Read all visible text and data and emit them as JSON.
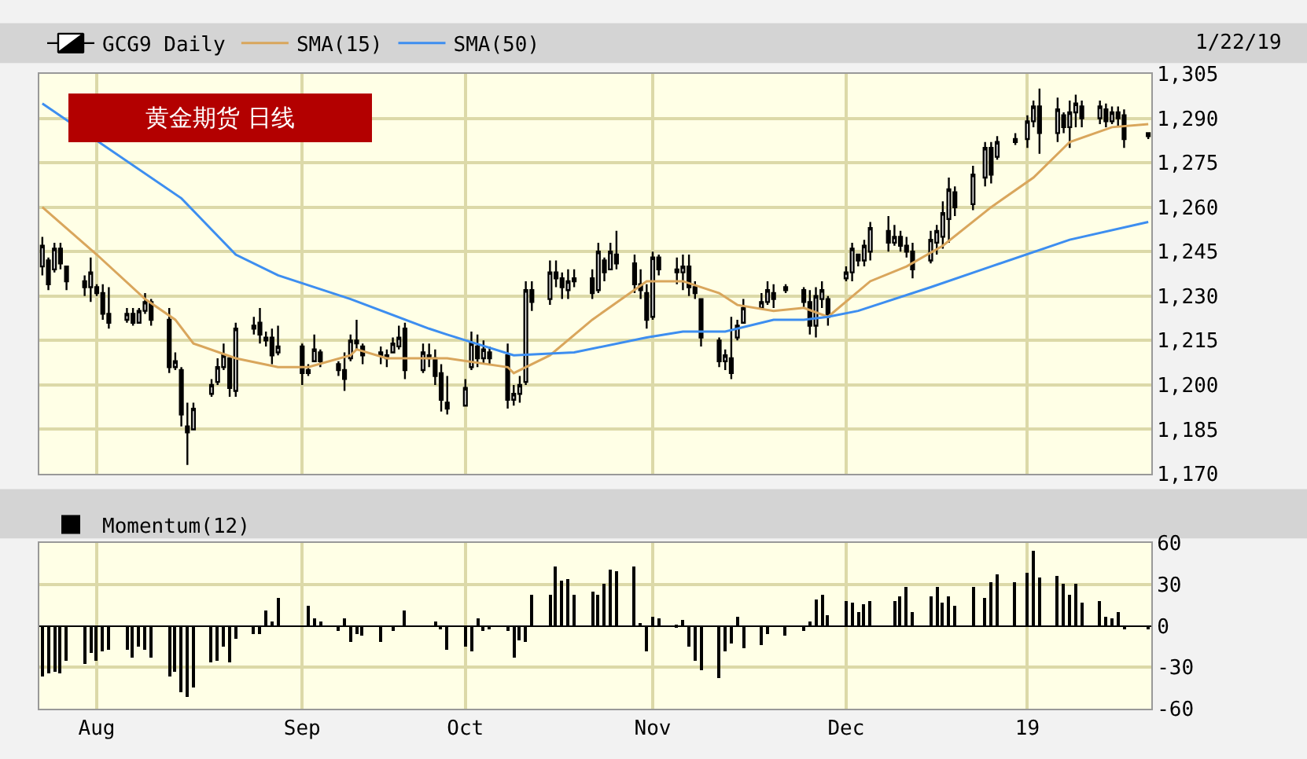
{
  "chart_data": [
    {
      "type": "candlestick",
      "title": "黄金期货 日线",
      "annotations": [
        "1/22/19"
      ],
      "legend": "top left",
      "grid": true,
      "tick_labels": "y",
      "x": [
        "2018-07-23",
        "2018-07-24",
        "2018-07-25",
        "2018-07-26",
        "2018-07-27",
        "2018-07-30",
        "2018-07-31",
        "2018-08-01",
        "2018-08-02",
        "2018-08-03",
        "2018-08-06",
        "2018-08-07",
        "2018-08-08",
        "2018-08-09",
        "2018-08-10",
        "2018-08-13",
        "2018-08-14",
        "2018-08-15",
        "2018-08-16",
        "2018-08-17",
        "2018-08-20",
        "2018-08-21",
        "2018-08-22",
        "2018-08-23",
        "2018-08-24",
        "2018-08-27",
        "2018-08-28",
        "2018-08-29",
        "2018-08-30",
        "2018-08-31",
        "2018-09-04",
        "2018-09-05",
        "2018-09-06",
        "2018-09-07",
        "2018-09-10",
        "2018-09-11",
        "2018-09-12",
        "2018-09-13",
        "2018-09-14",
        "2018-09-17",
        "2018-09-18",
        "2018-09-19",
        "2018-09-20",
        "2018-09-21",
        "2018-09-24",
        "2018-09-25",
        "2018-09-26",
        "2018-09-27",
        "2018-09-28",
        "2018-10-01",
        "2018-10-02",
        "2018-10-03",
        "2018-10-04",
        "2018-10-05",
        "2018-10-08",
        "2018-10-09",
        "2018-10-10",
        "2018-10-11",
        "2018-10-12",
        "2018-10-15",
        "2018-10-16",
        "2018-10-17",
        "2018-10-18",
        "2018-10-19",
        "2018-10-22",
        "2018-10-23",
        "2018-10-24",
        "2018-10-25",
        "2018-10-26",
        "2018-10-29",
        "2018-10-30",
        "2018-10-31",
        "2018-11-01",
        "2018-11-02",
        "2018-11-05",
        "2018-11-06",
        "2018-11-07",
        "2018-11-08",
        "2018-11-09",
        "2018-11-12",
        "2018-11-13",
        "2018-11-14",
        "2018-11-15",
        "2018-11-16",
        "2018-11-19",
        "2018-11-20",
        "2018-11-21",
        "2018-11-23",
        "2018-11-26",
        "2018-11-27",
        "2018-11-28",
        "2018-11-29",
        "2018-11-30",
        "2018-12-03",
        "2018-12-04",
        "2018-12-05",
        "2018-12-06",
        "2018-12-07",
        "2018-12-10",
        "2018-12-11",
        "2018-12-12",
        "2018-12-13",
        "2018-12-14",
        "2018-12-17",
        "2018-12-18",
        "2018-12-19",
        "2018-12-20",
        "2018-12-21",
        "2018-12-24",
        "2018-12-26",
        "2018-12-27",
        "2018-12-28",
        "2018-12-31",
        "2019-01-02",
        "2019-01-03",
        "2019-01-04",
        "2019-01-07",
        "2019-01-08",
        "2019-01-09",
        "2019-01-10",
        "2019-01-11",
        "2019-01-14",
        "2019-01-15",
        "2019-01-16",
        "2019-01-17",
        "2019-01-18",
        "2019-01-22"
      ],
      "xlim": [
        "2018-07-22T12:00",
        "2019-01-22T12:00"
      ],
      "xticks": [
        {
          "value": "2018-08-01",
          "label": null
        },
        {
          "value": "2018-09-04",
          "label": null
        },
        {
          "value": "2018-10-01",
          "label": null
        },
        {
          "value": "2018-11-01",
          "label": null
        },
        {
          "value": "2018-12-03",
          "label": null
        },
        {
          "value": "2019-01-02",
          "label": null
        }
      ],
      "ylim": [
        1170,
        1305
      ],
      "yticks": [
        {
          "value": 1170,
          "label": "1,170"
        },
        {
          "value": 1185,
          "label": "1,185"
        },
        {
          "value": 1200,
          "label": "1,200"
        },
        {
          "value": 1215,
          "label": "1,215"
        },
        {
          "value": 1230,
          "label": "1,230"
        },
        {
          "value": 1245,
          "label": "1,245"
        },
        {
          "value": 1260,
          "label": "1,260"
        },
        {
          "value": 1275,
          "label": "1,275"
        },
        {
          "value": 1290,
          "label": "1,290"
        },
        {
          "value": 1305,
          "label": "1,305"
        }
      ],
      "series": [
        {
          "name": "GCG9 Daily",
          "type": "candlestick",
          "color": "#000000",
          "ohlc": [
            [
              1240,
              1250,
              1237,
              1247
            ],
            [
              1242,
              1243,
              1232,
              1234
            ],
            [
              1239,
              1248,
              1238,
              1246
            ],
            [
              1246,
              1248,
              1239,
              1241
            ],
            [
              1240,
              1240,
              1232,
              1235
            ],
            [
              1235,
              1237,
              1230,
              1233
            ],
            [
              1233,
              1243,
              1228,
              1238
            ],
            [
              1233,
              1234,
              1230,
              1231
            ],
            [
              1231,
              1234,
              1222,
              1224
            ],
            [
              1224,
              1233,
              1219,
              1221
            ],
            [
              1222,
              1226,
              1221,
              1224
            ],
            [
              1224,
              1226,
              1220,
              1221
            ],
            [
              1221,
              1226,
              1221,
              1225
            ],
            [
              1225,
              1231,
              1224,
              1228
            ],
            [
              1228,
              1229,
              1220,
              1222
            ],
            [
              1222,
              1226,
              1204,
              1206
            ],
            [
              1206,
              1211,
              1205,
              1208
            ],
            [
              1205,
              1206,
              1186,
              1190
            ],
            [
              1186,
              1194,
              1173,
              1184
            ],
            [
              1185,
              1194,
              1185,
              1192
            ],
            [
              1197,
              1202,
              1196,
              1200
            ],
            [
              1201,
              1209,
              1200,
              1206
            ],
            [
              1206,
              1214,
              1205,
              1210
            ],
            [
              1209,
              1209,
              1196,
              1199
            ],
            [
              1198,
              1221,
              1196,
              1219
            ],
            [
              1219,
              1223,
              1217,
              1220
            ],
            [
              1221,
              1226,
              1214,
              1217
            ],
            [
              1216,
              1218,
              1213,
              1215
            ],
            [
              1216,
              1219,
              1207,
              1210
            ],
            [
              1211,
              1220,
              1210,
              1213
            ],
            [
              1213,
              1214,
              1200,
              1204
            ],
            [
              1204,
              1207,
              1203,
              1205
            ],
            [
              1208,
              1217,
              1208,
              1212
            ],
            [
              1211,
              1212,
              1206,
              1208
            ],
            [
              1207,
              1208,
              1203,
              1205
            ],
            [
              1205,
              1211,
              1198,
              1202
            ],
            [
              1209,
              1217,
              1208,
              1215
            ],
            [
              1215,
              1222,
              1212,
              1214
            ],
            [
              1213,
              1214,
              1207,
              1210
            ],
            [
              1210,
              1213,
              1207,
              1211
            ],
            [
              1209,
              1212,
              1206,
              1210
            ],
            [
              1211,
              1216,
              1211,
              1214
            ],
            [
              1213,
              1220,
              1212,
              1216
            ],
            [
              1219,
              1221,
              1202,
              1205
            ],
            [
              1205,
              1214,
              1204,
              1211
            ],
            [
              1210,
              1214,
              1206,
              1209
            ],
            [
              1209,
              1212,
              1200,
              1203
            ],
            [
              1204,
              1207,
              1191,
              1195
            ],
            [
              1194,
              1203,
              1190,
              1192
            ],
            [
              1193,
              1202,
              1193,
              1199
            ],
            [
              1206,
              1218,
              1205,
              1214
            ],
            [
              1213,
              1217,
              1206,
              1209
            ],
            [
              1209,
              1215,
              1207,
              1212
            ],
            [
              1211,
              1213,
              1207,
              1209
            ],
            [
              1210,
              1214,
              1192,
              1195
            ],
            [
              1195,
              1200,
              1193,
              1197
            ],
            [
              1197,
              1203,
              1194,
              1200
            ],
            [
              1201,
              1235,
              1200,
              1232
            ],
            [
              1232,
              1235,
              1225,
              1228
            ],
            [
              1229,
              1242,
              1227,
              1238
            ],
            [
              1238,
              1242,
              1233,
              1236
            ],
            [
              1236,
              1238,
              1229,
              1233
            ],
            [
              1232,
              1239,
              1229,
              1235
            ],
            [
              1235,
              1239,
              1233,
              1236
            ],
            [
              1236,
              1239,
              1229,
              1231
            ],
            [
              1232,
              1248,
              1231,
              1245
            ],
            [
              1242,
              1243,
              1235,
              1238
            ],
            [
              1239,
              1248,
              1239,
              1245
            ],
            [
              1244,
              1252,
              1239,
              1241
            ],
            [
              1241,
              1244,
              1231,
              1234
            ],
            [
              1234,
              1239,
              1229,
              1232
            ],
            [
              1231,
              1234,
              1219,
              1222
            ],
            [
              1223,
              1245,
              1222,
              1243
            ],
            [
              1243,
              1244,
              1237,
              1239
            ],
            [
              1239,
              1243,
              1234,
              1238
            ],
            [
              1238,
              1244,
              1232,
              1240
            ],
            [
              1240,
              1244,
              1230,
              1233
            ],
            [
              1233,
              1235,
              1229,
              1231
            ],
            [
              1229,
              1229,
              1213,
              1216
            ],
            [
              1215,
              1216,
              1206,
              1208
            ],
            [
              1208,
              1212,
              1205,
              1210
            ],
            [
              1209,
              1223,
              1202,
              1204
            ],
            [
              1216,
              1222,
              1215,
              1220
            ],
            [
              1221,
              1229,
              1221,
              1226
            ],
            [
              1226,
              1231,
              1226,
              1228
            ],
            [
              1228,
              1235,
              1227,
              1232
            ],
            [
              1231,
              1234,
              1226,
              1229
            ],
            [
              1232,
              1234,
              1231,
              1233
            ],
            [
              1232,
              1233,
              1226,
              1228
            ],
            [
              1228,
              1232,
              1217,
              1220
            ],
            [
              1220,
              1233,
              1216,
              1230
            ],
            [
              1229,
              1235,
              1226,
              1232
            ],
            [
              1229,
              1230,
              1220,
              1223
            ],
            [
              1236,
              1240,
              1235,
              1238
            ],
            [
              1238,
              1248,
              1235,
              1246
            ],
            [
              1244,
              1244,
              1240,
              1242
            ],
            [
              1242,
              1249,
              1240,
              1247
            ],
            [
              1245,
              1255,
              1242,
              1253
            ],
            [
              1252,
              1257,
              1245,
              1248
            ],
            [
              1248,
              1254,
              1247,
              1250
            ],
            [
              1250,
              1252,
              1245,
              1247
            ],
            [
              1247,
              1250,
              1243,
              1245
            ],
            [
              1245,
              1248,
              1236,
              1239
            ],
            [
              1242,
              1252,
              1241,
              1249
            ],
            [
              1248,
              1254,
              1244,
              1252
            ],
            [
              1250,
              1262,
              1246,
              1258
            ],
            [
              1256,
              1270,
              1248,
              1266
            ],
            [
              1265,
              1267,
              1257,
              1260
            ],
            [
              1261,
              1274,
              1259,
              1271
            ],
            [
              1270,
              1282,
              1267,
              1280
            ],
            [
              1280,
              1282,
              1268,
              1271
            ],
            [
              1277,
              1284,
              1276,
              1282
            ],
            [
              1282,
              1285,
              1281,
              1283
            ],
            [
              1283,
              1291,
              1280,
              1289
            ],
            [
              1289,
              1296,
              1287,
              1294
            ],
            [
              1294,
              1300,
              1278,
              1285
            ],
            [
              1285,
              1297,
              1282,
              1293
            ],
            [
              1291,
              1292,
              1285,
              1287
            ],
            [
              1287,
              1296,
              1280,
              1292
            ],
            [
              1292,
              1298,
              1287,
              1295
            ],
            [
              1294,
              1296,
              1287,
              1290
            ],
            [
              1290,
              1296,
              1288,
              1294
            ],
            [
              1293,
              1295,
              1287,
              1289
            ],
            [
              1289,
              1294,
              1288,
              1292
            ],
            [
              1292,
              1294,
              1287,
              1290
            ],
            [
              1291,
              1293,
              1280,
              1283
            ],
            [
              1285,
              1285,
              1283,
              1284
            ]
          ]
        },
        {
          "name": "SMA(15)",
          "type": "line",
          "color": "#d9a65c",
          "x": [
            "2018-07-23",
            "2018-08-01",
            "2018-08-09",
            "2018-08-14",
            "2018-08-17",
            "2018-08-24",
            "2018-08-31",
            "2018-09-05",
            "2018-09-12",
            "2018-09-13",
            "2018-09-18",
            "2018-09-25",
            "2018-09-28",
            "2018-10-08",
            "2018-10-09",
            "2018-10-15",
            "2018-10-22",
            "2018-10-31",
            "2018-11-06",
            "2018-11-12",
            "2018-11-15",
            "2018-11-21",
            "2018-11-26",
            "2018-11-30",
            "2018-12-07",
            "2018-12-13",
            "2018-12-19",
            "2018-12-27",
            "2019-01-03",
            "2019-01-09",
            "2019-01-16",
            "2019-01-22"
          ],
          "values": [
            1260,
            1244,
            1229,
            1222,
            1214,
            1209,
            1206,
            1206,
            1210,
            1212,
            1209,
            1209,
            1209,
            1206,
            1204,
            1210,
            1222,
            1235,
            1235,
            1231,
            1227,
            1225,
            1226,
            1223,
            1235,
            1240,
            1247,
            1260,
            1270,
            1282,
            1287,
            1288
          ]
        },
        {
          "name": "SMA(50)",
          "type": "line",
          "color": "#3d8ef0",
          "x": [
            "2018-07-23",
            "2018-08-15",
            "2018-08-24",
            "2018-08-31",
            "2018-09-12",
            "2018-09-25",
            "2018-09-28",
            "2018-10-09",
            "2018-10-19",
            "2018-10-31",
            "2018-11-06",
            "2018-11-13",
            "2018-11-21",
            "2018-11-26",
            "2018-11-30",
            "2018-12-05",
            "2018-12-17",
            "2018-12-27",
            "2019-01-09",
            "2019-01-22"
          ],
          "values": [
            1295,
            1263,
            1244,
            1237,
            1229,
            1219,
            1217,
            1210,
            1211,
            1216,
            1218,
            1218,
            1222,
            1222,
            1223,
            1225,
            1233,
            1240,
            1249,
            1255
          ]
        }
      ]
    },
    {
      "type": "bar",
      "legend": "top left",
      "grid": true,
      "x": [
        "2018-07-23",
        "2018-07-24",
        "2018-07-25",
        "2018-07-26",
        "2018-07-27",
        "2018-07-30",
        "2018-07-31",
        "2018-08-01",
        "2018-08-02",
        "2018-08-03",
        "2018-08-06",
        "2018-08-07",
        "2018-08-08",
        "2018-08-09",
        "2018-08-10",
        "2018-08-13",
        "2018-08-14",
        "2018-08-15",
        "2018-08-16",
        "2018-08-17",
        "2018-08-20",
        "2018-08-21",
        "2018-08-22",
        "2018-08-23",
        "2018-08-24",
        "2018-08-27",
        "2018-08-28",
        "2018-08-29",
        "2018-08-30",
        "2018-08-31",
        "2018-09-04",
        "2018-09-05",
        "2018-09-06",
        "2018-09-07",
        "2018-09-10",
        "2018-09-11",
        "2018-09-12",
        "2018-09-13",
        "2018-09-14",
        "2018-09-17",
        "2018-09-18",
        "2018-09-19",
        "2018-09-20",
        "2018-09-21",
        "2018-09-24",
        "2018-09-25",
        "2018-09-26",
        "2018-09-27",
        "2018-09-28",
        "2018-10-01",
        "2018-10-02",
        "2018-10-03",
        "2018-10-04",
        "2018-10-05",
        "2018-10-08",
        "2018-10-09",
        "2018-10-10",
        "2018-10-11",
        "2018-10-12",
        "2018-10-15",
        "2018-10-16",
        "2018-10-17",
        "2018-10-18",
        "2018-10-19",
        "2018-10-22",
        "2018-10-23",
        "2018-10-24",
        "2018-10-25",
        "2018-10-26",
        "2018-10-29",
        "2018-10-30",
        "2018-10-31",
        "2018-11-01",
        "2018-11-02",
        "2018-11-05",
        "2018-11-06",
        "2018-11-07",
        "2018-11-08",
        "2018-11-09",
        "2018-11-12",
        "2018-11-13",
        "2018-11-14",
        "2018-11-15",
        "2018-11-16",
        "2018-11-19",
        "2018-11-20",
        "2018-11-21",
        "2018-11-23",
        "2018-11-26",
        "2018-11-27",
        "2018-11-28",
        "2018-11-29",
        "2018-11-30",
        "2018-12-03",
        "2018-12-04",
        "2018-12-05",
        "2018-12-06",
        "2018-12-07",
        "2018-12-10",
        "2018-12-11",
        "2018-12-12",
        "2018-12-13",
        "2018-12-14",
        "2018-12-17",
        "2018-12-18",
        "2018-12-19",
        "2018-12-20",
        "2018-12-21",
        "2018-12-24",
        "2018-12-26",
        "2018-12-27",
        "2018-12-28",
        "2018-12-31",
        "2019-01-02",
        "2019-01-03",
        "2019-01-04",
        "2019-01-07",
        "2019-01-08",
        "2019-01-09",
        "2019-01-10",
        "2019-01-11",
        "2019-01-14",
        "2019-01-15",
        "2019-01-16",
        "2019-01-17",
        "2019-01-18",
        "2019-01-22"
      ],
      "xlim": [
        "2018-07-22T12:00",
        "2019-01-22T12:00"
      ],
      "xticks": [
        {
          "value": "2018-08-01",
          "label": "Aug"
        },
        {
          "value": "2018-09-04",
          "label": "Sep"
        },
        {
          "value": "2018-10-01",
          "label": "Oct"
        },
        {
          "value": "2018-11-01",
          "label": "Nov"
        },
        {
          "value": "2018-12-03",
          "label": "Dec"
        },
        {
          "value": "2019-01-02",
          "label": "19"
        }
      ],
      "ylim": [
        -60,
        60
      ],
      "yticks": [
        -60,
        -30,
        0,
        30,
        60
      ],
      "series": [
        {
          "name": "Momentum(12)",
          "color": "#000000",
          "values": [
            -37,
            -34,
            -33,
            -34,
            -25,
            -28,
            -20,
            -25,
            -19,
            -17,
            -17,
            -23,
            -15,
            -17,
            -23,
            -37,
            -33,
            -48,
            -51,
            -45,
            -26,
            -25,
            -15,
            -26,
            -9,
            -6,
            -6,
            11,
            3,
            20,
            0,
            14,
            5,
            3,
            -4,
            5,
            -12,
            -6,
            -7,
            -12,
            0,
            -4,
            0,
            11,
            0,
            0,
            3,
            -3,
            -17,
            -15,
            -18,
            5,
            -4,
            -3,
            -4,
            -23,
            -11,
            -12,
            22,
            22,
            43,
            33,
            34,
            22,
            25,
            22,
            30,
            41,
            40,
            43,
            1,
            -18,
            7,
            5,
            -2,
            4,
            -15,
            -25,
            -32,
            -38,
            -19,
            -13,
            7,
            -16,
            -14,
            -6,
            0,
            -7,
            -4,
            3,
            19,
            23,
            8,
            18,
            17,
            10,
            16,
            18,
            0,
            18,
            21,
            28,
            10,
            21,
            28,
            17,
            21,
            15,
            28,
            20,
            31,
            37,
            31,
            38,
            54,
            35,
            36,
            30,
            23,
            30,
            17,
            18,
            7,
            5,
            10,
            -3,
            -3
          ]
        }
      ]
    }
  ]
}
